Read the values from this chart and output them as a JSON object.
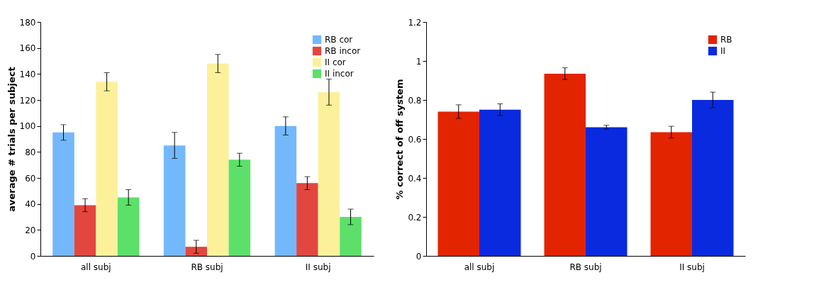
{
  "chart_data": [
    {
      "type": "bar",
      "ylabel": "average # trials per subject",
      "categories": [
        "all subj",
        "RB subj",
        "II subj"
      ],
      "ylim": [
        0,
        180
      ],
      "yticks": [
        0,
        20,
        40,
        60,
        80,
        100,
        120,
        140,
        160,
        180
      ],
      "legend": "top right",
      "series": [
        {
          "name": "RB cor",
          "color": "#74b8fc",
          "values": [
            95,
            85,
            100
          ],
          "errors": [
            6,
            10,
            7
          ]
        },
        {
          "name": "RB incor",
          "color": "#e3463f",
          "values": [
            39,
            7,
            56
          ],
          "errors": [
            5,
            5,
            5
          ]
        },
        {
          "name": "II cor",
          "color": "#fdf09a",
          "values": [
            134,
            148,
            126
          ],
          "errors": [
            7,
            7,
            10
          ]
        },
        {
          "name": "II incor",
          "color": "#5ce06a",
          "values": [
            45,
            74,
            30
          ],
          "errors": [
            6,
            5,
            6
          ]
        }
      ]
    },
    {
      "type": "bar",
      "ylabel": "% correct of off system",
      "categories": [
        "all subj",
        "RB subj",
        "II subj"
      ],
      "ylim": [
        0,
        1.2
      ],
      "yticks": [
        0,
        0.2,
        0.4,
        0.6,
        0.8,
        1,
        1.2
      ],
      "legend": "top right",
      "series": [
        {
          "name": "RB",
          "color": "#e32400",
          "values": [
            0.74,
            0.935,
            0.635
          ],
          "errors": [
            0.035,
            0.03,
            0.03
          ]
        },
        {
          "name": "II",
          "color": "#0a2adf",
          "values": [
            0.75,
            0.66,
            0.8
          ],
          "errors": [
            0.03,
            0.01,
            0.04
          ]
        }
      ]
    }
  ]
}
